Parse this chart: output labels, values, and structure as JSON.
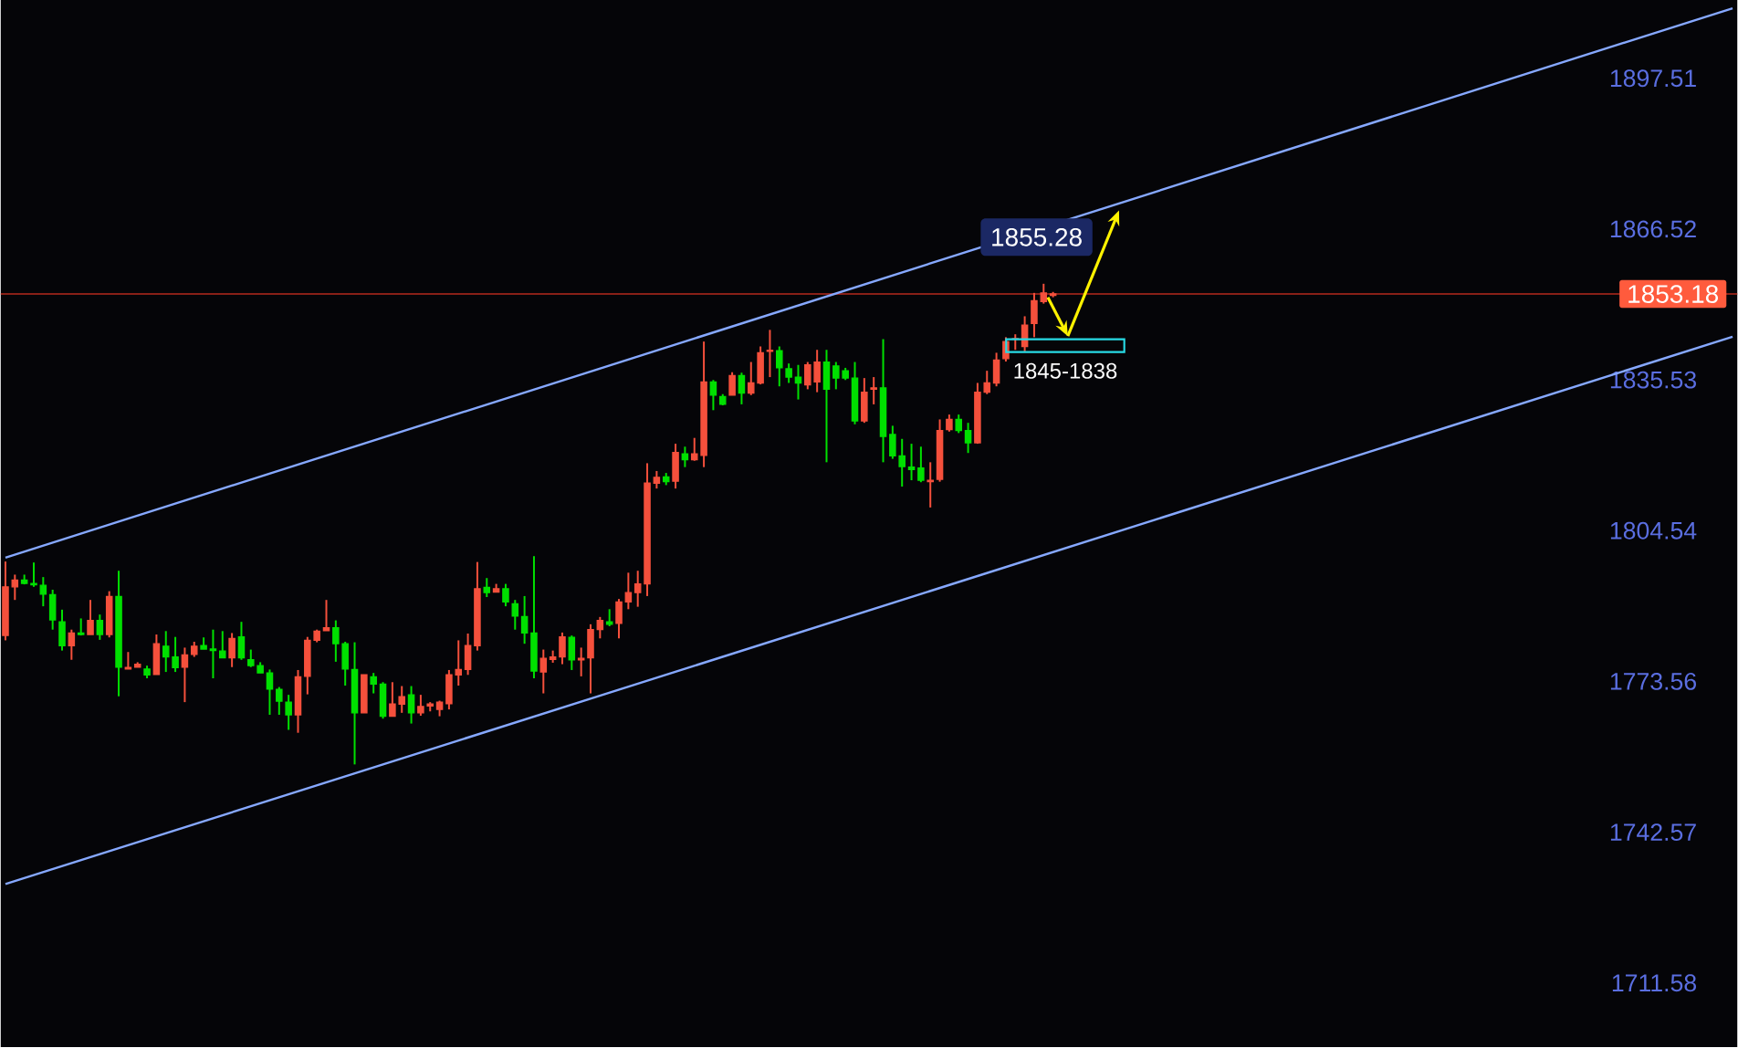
{
  "chart_data": {
    "type": "candlestick",
    "categories": [
      null,
      null,
      null,
      null,
      null,
      null,
      null,
      null,
      null,
      null,
      null,
      null,
      null,
      null,
      null,
      null,
      null,
      null,
      null,
      null,
      null,
      null,
      null,
      null,
      null,
      null,
      null,
      null,
      null,
      null,
      null,
      null,
      null,
      null,
      null,
      null,
      null,
      null,
      null,
      null,
      null,
      null,
      null,
      null,
      null,
      null,
      null,
      null,
      null,
      null,
      null,
      null,
      null,
      null,
      null,
      null,
      null,
      null,
      null,
      null,
      null,
      null,
      null,
      null,
      null,
      null,
      null,
      null,
      null,
      null,
      null,
      null,
      null,
      null,
      null,
      null,
      null,
      null,
      null,
      null,
      null,
      null,
      null,
      null,
      null,
      null,
      null,
      null,
      null,
      null,
      null,
      null,
      null,
      null,
      null,
      null,
      null,
      null,
      null,
      null,
      null,
      null,
      null,
      null,
      null,
      null,
      null,
      null,
      null,
      null,
      null,
      null,
      null,
      null,
      null,
      null,
      null,
      null,
      null,
      null,
      null,
      null,
      null,
      null,
      null,
      null,
      null,
      null,
      null,
      null,
      null,
      null,
      null,
      null,
      null,
      null,
      null,
      null,
      null,
      null,
      null,
      null,
      null,
      null,
      null,
      null,
      null,
      null,
      null,
      null,
      null,
      null,
      null,
      null,
      null,
      null,
      null,
      null,
      null,
      null,
      null,
      null,
      null,
      null,
      null,
      null,
      null,
      null,
      null,
      null,
      null,
      null,
      null,
      null,
      null,
      null,
      null,
      null,
      null,
      null,
      null,
      null,
      null,
      null
    ],
    "ohlc": [
      [
        1783.0,
        1798.2,
        1782.0,
        1793.0
      ],
      [
        1793.0,
        1795.5,
        1790.3,
        1794.4
      ],
      [
        1794.4,
        1795.5,
        1793.5,
        1793.7
      ],
      [
        1793.7,
        1798.0,
        1793.0,
        1793.4
      ],
      [
        1793.3,
        1795.0,
        1789.0,
        1791.5
      ],
      [
        1791.4,
        1792.4,
        1784.2,
        1786.2
      ],
      [
        1785.8,
        1788.3,
        1779.9,
        1780.9
      ],
      [
        1780.9,
        1784.2,
        1778.0,
        1783.5
      ],
      [
        1783.5,
        1786.5,
        1783.0,
        1783.2
      ],
      [
        1783.2,
        1790.3,
        1783.2,
        1786.1
      ],
      [
        1786.1,
        1787.3,
        1782.1,
        1783.2
      ],
      [
        1783.2,
        1792.1,
        1782.6,
        1791.0
      ],
      [
        1791.0,
        1796.3,
        1770.5,
        1776.5
      ],
      [
        1776.1,
        1779.6,
        1776.1,
        1776.4
      ],
      [
        1776.5,
        1777.5,
        1776.5,
        1777.1
      ],
      [
        1776.1,
        1776.8,
        1774.2,
        1774.9
      ],
      [
        1775.0,
        1783.2,
        1775.0,
        1781.3
      ],
      [
        1780.8,
        1783.9,
        1775.5,
        1778.6
      ],
      [
        1778.6,
        1782.7,
        1775.5,
        1776.4
      ],
      [
        1776.5,
        1780.5,
        1769.3,
        1779.0
      ],
      [
        1779.1,
        1781.7,
        1778.6,
        1780.8
      ],
      [
        1780.9,
        1782.6,
        1780.2,
        1780.2
      ],
      [
        1780.2,
        1784.2,
        1774.2,
        1779.9
      ],
      [
        1779.8,
        1783.9,
        1778.4,
        1778.4
      ],
      [
        1778.4,
        1783.5,
        1776.5,
        1782.4
      ],
      [
        1782.7,
        1785.8,
        1778.0,
        1778.4
      ],
      [
        1778.0,
        1780.1,
        1776.5,
        1776.8
      ],
      [
        1776.8,
        1777.5,
        1775.3,
        1775.3
      ],
      [
        1775.3,
        1776.0,
        1766.7,
        1772.0
      ],
      [
        1771.9,
        1772.4,
        1766.7,
        1769.5
      ],
      [
        1769.3,
        1770.8,
        1763.6,
        1766.7
      ],
      [
        1766.7,
        1775.9,
        1763.0,
        1774.5
      ],
      [
        1774.6,
        1782.7,
        1770.9,
        1782.0
      ],
      [
        1782.0,
        1784.2,
        1781.6,
        1783.9
      ],
      [
        1784.0,
        1790.3,
        1784.0,
        1784.6
      ],
      [
        1784.6,
        1786.1,
        1777.6,
        1781.3
      ],
      [
        1781.3,
        1781.7,
        1772.7,
        1776.1
      ],
      [
        1776.0,
        1781.6,
        1756.5,
        1767.1
      ],
      [
        1767.1,
        1774.9,
        1767.1,
        1774.9
      ],
      [
        1774.5,
        1775.3,
        1771.1,
        1773.0
      ],
      [
        1773.0,
        1773.4,
        1765.9,
        1766.4
      ],
      [
        1766.4,
        1773.4,
        1766.4,
        1768.9
      ],
      [
        1768.9,
        1772.6,
        1767.1,
        1770.4
      ],
      [
        1770.8,
        1772.6,
        1764.9,
        1767.1
      ],
      [
        1767.1,
        1770.8,
        1766.5,
        1768.4
      ],
      [
        1768.5,
        1769.3,
        1767.4,
        1768.9
      ],
      [
        1767.8,
        1769.6,
        1766.4,
        1769.3
      ],
      [
        1769.0,
        1775.9,
        1767.8,
        1774.9
      ],
      [
        1774.9,
        1782.0,
        1772.7,
        1776.0
      ],
      [
        1776.0,
        1783.4,
        1774.9,
        1780.9
      ],
      [
        1780.9,
        1798.1,
        1779.9,
        1792.6
      ],
      [
        1792.9,
        1794.8,
        1790.9,
        1791.8
      ],
      [
        1791.9,
        1793.6,
        1791.9,
        1792.6
      ],
      [
        1792.6,
        1793.6,
        1789.0,
        1789.9
      ],
      [
        1789.5,
        1790.3,
        1784.2,
        1787.0
      ],
      [
        1786.9,
        1791.1,
        1781.3,
        1783.5
      ],
      [
        1783.5,
        1799.3,
        1774.2,
        1775.7
      ],
      [
        1775.5,
        1780.1,
        1771.1,
        1778.3
      ],
      [
        1778.1,
        1779.9,
        1777.4,
        1778.6
      ],
      [
        1778.6,
        1783.6,
        1777.1,
        1782.7
      ],
      [
        1782.6,
        1783.0,
        1775.9,
        1778.0
      ],
      [
        1778.0,
        1780.5,
        1774.6,
        1778.3
      ],
      [
        1778.4,
        1785.3,
        1771.1,
        1784.2
      ],
      [
        1784.2,
        1786.8,
        1782.4,
        1786.1
      ],
      [
        1785.8,
        1788.4,
        1784.9,
        1785.3
      ],
      [
        1785.5,
        1790.5,
        1782.4,
        1789.9
      ],
      [
        1789.9,
        1795.9,
        1788.4,
        1791.8
      ],
      [
        1791.8,
        1796.3,
        1788.9,
        1793.6
      ],
      [
        1793.6,
        1818.4,
        1791.1,
        1814.3
      ],
      [
        1814.3,
        1816.8,
        1813.2,
        1815.5
      ],
      [
        1815.6,
        1816.4,
        1813.9,
        1814.6
      ],
      [
        1814.7,
        1822.4,
        1813.2,
        1820.6
      ],
      [
        1820.3,
        1821.8,
        1817.6,
        1819.1
      ],
      [
        1819.1,
        1823.6,
        1818.9,
        1820.3
      ],
      [
        1820.0,
        1843.4,
        1817.6,
        1835.1
      ],
      [
        1835.1,
        1835.5,
        1829.3,
        1832.4
      ],
      [
        1832.1,
        1832.6,
        1830.3,
        1830.5
      ],
      [
        1832.4,
        1837.1,
        1832.4,
        1836.4
      ],
      [
        1836.4,
        1837.0,
        1830.5,
        1832.8
      ],
      [
        1832.8,
        1839.2,
        1832.4,
        1834.9
      ],
      [
        1834.9,
        1842.4,
        1834.6,
        1841.1
      ],
      [
        1841.4,
        1845.8,
        1836.1,
        1841.6
      ],
      [
        1841.5,
        1842.4,
        1834.2,
        1838.0
      ],
      [
        1837.8,
        1838.9,
        1834.9,
        1836.1
      ],
      [
        1836.1,
        1838.6,
        1831.5,
        1834.9
      ],
      [
        1834.5,
        1839.2,
        1833.6,
        1838.6
      ],
      [
        1835.1,
        1841.7,
        1833.0,
        1839.2
      ],
      [
        1839.2,
        1841.7,
        1818.6,
        1833.6
      ],
      [
        1838.4,
        1839.2,
        1833.6,
        1835.9
      ],
      [
        1837.4,
        1838.0,
        1835.5,
        1835.9
      ],
      [
        1835.9,
        1839.2,
        1826.4,
        1827.1
      ],
      [
        1827.1,
        1835.9,
        1826.7,
        1833.0
      ],
      [
        1833.6,
        1836.1,
        1830.5,
        1833.9
      ],
      [
        1833.9,
        1843.9,
        1818.6,
        1823.9
      ],
      [
        1824.3,
        1826.1,
        1819.3,
        1819.9
      ],
      [
        1819.9,
        1823.4,
        1813.6,
        1817.7
      ],
      [
        1817.6,
        1822.4,
        1814.9,
        1817.1
      ],
      [
        1817.4,
        1821.8,
        1814.5,
        1814.9
      ],
      [
        1814.6,
        1818.6,
        1809.3,
        1814.9
      ],
      [
        1815.1,
        1827.4,
        1814.6,
        1825.1
      ],
      [
        1825.3,
        1828.4,
        1824.9,
        1827.4
      ],
      [
        1827.4,
        1828.4,
        1824.6,
        1825.1
      ],
      [
        1825.1,
        1826.7,
        1820.5,
        1822.6
      ],
      [
        1822.6,
        1834.9,
        1822.4,
        1833.0
      ],
      [
        1833.0,
        1837.4,
        1832.6,
        1834.9
      ],
      [
        1834.9,
        1841.1,
        1834.2,
        1839.6
      ],
      [
        1839.9,
        1844.3,
        1839.3,
        1843.4
      ],
      [
        1843.9,
        1844.9,
        1841.7,
        1844.0
      ],
      [
        1842.4,
        1848.6,
        1841.4,
        1846.8
      ],
      [
        1847.1,
        1853.4,
        1844.3,
        1851.8
      ],
      [
        1851.6,
        1855.28,
        1851.2,
        1853.4
      ],
      [
        1852.9,
        1853.6,
        1852.5,
        1853.18
      ],
      null,
      null,
      null,
      null,
      null,
      null,
      null,
      null,
      null,
      null,
      null,
      null,
      null,
      null,
      null,
      null,
      null,
      null,
      null,
      null,
      null,
      null,
      null,
      null,
      null,
      null,
      null,
      null,
      null,
      null,
      null,
      null,
      null,
      null,
      null,
      null,
      null,
      null,
      null,
      null,
      null,
      null,
      null,
      null,
      null,
      null,
      null,
      null,
      null,
      null,
      null,
      null,
      null,
      null,
      null,
      null,
      null,
      null,
      null,
      null,
      null,
      null,
      null,
      null,
      null,
      null,
      null,
      null,
      null,
      null,
      null,
      null
    ],
    "series": [
      {
        "type": "line",
        "values": [
          1799.0,
          null,
          null,
          null,
          null,
          null,
          null,
          null,
          null,
          null,
          null,
          null,
          null,
          null,
          null,
          null,
          null,
          null,
          null,
          null,
          null,
          null,
          null,
          null,
          null,
          null,
          null,
          null,
          null,
          null,
          null,
          null,
          null,
          null,
          null,
          null,
          null,
          null,
          null,
          null,
          null,
          null,
          null,
          null,
          null,
          null,
          null,
          null,
          null,
          null,
          null,
          null,
          null,
          null,
          null,
          null,
          null,
          null,
          null,
          null,
          null,
          null,
          null,
          null,
          null,
          null,
          null,
          null,
          null,
          null,
          null,
          null,
          null,
          null,
          null,
          null,
          null,
          null,
          null,
          null,
          null,
          null,
          null,
          null,
          null,
          null,
          null,
          null,
          null,
          null,
          null,
          null,
          null,
          null,
          null,
          null,
          null,
          null,
          null,
          null,
          null,
          null,
          null,
          null,
          null,
          null,
          null,
          null,
          null,
          null,
          null,
          null,
          null,
          null,
          null,
          null,
          null,
          null,
          null,
          null,
          null,
          null,
          null,
          null,
          null,
          null,
          null,
          null,
          null,
          null,
          null,
          null,
          null,
          null,
          null,
          null,
          null,
          null,
          null,
          null,
          null,
          null,
          null,
          null,
          null,
          null,
          null,
          null,
          null,
          null,
          null,
          null,
          null,
          null,
          null,
          null,
          null,
          null,
          null,
          null,
          null,
          null,
          null,
          null,
          null,
          null,
          null,
          null,
          null,
          null,
          null,
          null,
          null,
          null,
          null,
          null,
          null,
          null,
          null,
          null,
          null,
          null,
          null,
          1911.9
        ],
        "color": "#86a8ff"
      },
      {
        "type": "line",
        "values": [
          1731.9,
          null,
          null,
          null,
          null,
          null,
          null,
          null,
          null,
          null,
          null,
          null,
          null,
          null,
          null,
          null,
          null,
          null,
          null,
          null,
          null,
          null,
          null,
          null,
          null,
          null,
          null,
          null,
          null,
          null,
          null,
          null,
          null,
          null,
          null,
          null,
          null,
          null,
          null,
          null,
          null,
          null,
          null,
          null,
          null,
          null,
          null,
          null,
          null,
          null,
          null,
          null,
          null,
          null,
          null,
          null,
          null,
          null,
          null,
          null,
          null,
          null,
          null,
          null,
          null,
          null,
          null,
          null,
          null,
          null,
          null,
          null,
          null,
          null,
          null,
          null,
          null,
          null,
          null,
          null,
          null,
          null,
          null,
          null,
          null,
          null,
          null,
          null,
          null,
          null,
          null,
          null,
          null,
          null,
          null,
          null,
          null,
          null,
          null,
          null,
          null,
          null,
          null,
          null,
          null,
          null,
          null,
          null,
          null,
          null,
          null,
          null,
          null,
          null,
          null,
          null,
          null,
          null,
          null,
          null,
          null,
          null,
          null,
          null,
          null,
          null,
          null,
          null,
          null,
          null,
          null,
          null,
          null,
          null,
          null,
          null,
          null,
          null,
          null,
          null,
          null,
          null,
          null,
          null,
          null,
          null,
          null,
          null,
          null,
          null,
          null,
          null,
          null,
          null,
          null,
          null,
          null,
          null,
          null,
          null,
          null,
          null,
          null,
          null,
          null,
          null,
          null,
          null,
          null,
          null,
          null,
          null,
          null,
          null,
          null,
          null,
          null,
          null,
          null,
          null,
          null,
          null,
          null,
          1844.4
        ],
        "color": "#86a8ff"
      }
    ],
    "ylim": [
      1698.4,
      1913.6
    ],
    "yticks": [
      1711.58,
      1742.57,
      1773.56,
      1804.54,
      1835.53,
      1866.52,
      1897.51
    ],
    "tick_labels": "y",
    "ref_lines": [
      {
        "axis": "y",
        "value": 1853.18,
        "label": "1853.18",
        "color": "#b52a1c"
      }
    ],
    "annotations": [
      "1855.28",
      "1845-1838"
    ]
  }
}
